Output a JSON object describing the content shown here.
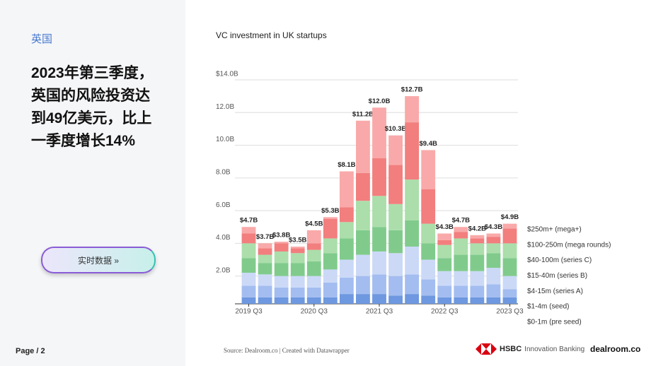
{
  "sidebar": {
    "tag": "英国",
    "headline": "2023年第三季度，英国的风险投资达到49亿美元，比上一季度增长14%",
    "button": "实时数据 »",
    "page": "Page / 2"
  },
  "chart_data": {
    "type": "stacked-bar",
    "title": "VC investment in UK startups",
    "categories": [
      "2019 Q3",
      null,
      null,
      null,
      "2020 Q3",
      null,
      null,
      null,
      "2021 Q3",
      null,
      null,
      null,
      "2022 Q3",
      null,
      null,
      null,
      "2023 Q3"
    ],
    "series": [
      {
        "name": "$0-1m (pre seed)",
        "color": "#6e98e0",
        "values": [
          0.4,
          0.4,
          0.4,
          0.4,
          0.4,
          0.4,
          0.6,
          0.6,
          0.6,
          0.5,
          0.6,
          0.5,
          0.4,
          0.4,
          0.4,
          0.4,
          0.4
        ]
      },
      {
        "name": "$1-4m (seed)",
        "color": "#a3bdf0",
        "values": [
          0.7,
          0.7,
          0.6,
          0.6,
          0.6,
          0.9,
          1.0,
          1.1,
          1.2,
          1.2,
          1.2,
          1.0,
          0.7,
          0.7,
          0.7,
          0.8,
          0.5
        ]
      },
      {
        "name": "$4-15m (series A)",
        "color": "#cbd9f7",
        "values": [
          0.8,
          0.7,
          0.7,
          0.7,
          0.7,
          0.8,
          1.1,
          1.3,
          1.4,
          1.4,
          1.7,
          1.2,
          0.9,
          0.9,
          0.9,
          1.0,
          0.8
        ]
      },
      {
        "name": "$15-40m (series B)",
        "color": "#80cb8c",
        "values": [
          0.9,
          0.7,
          0.8,
          0.8,
          0.9,
          1.0,
          1.3,
          1.5,
          1.5,
          1.4,
          1.6,
          1.0,
          0.8,
          1.0,
          1.0,
          0.9,
          1.1
        ]
      },
      {
        "name": "$40-100m (series C)",
        "color": "#abdeaa",
        "values": [
          0.9,
          0.5,
          0.7,
          0.6,
          0.7,
          0.9,
          1.0,
          1.8,
          1.9,
          1.6,
          2.5,
          1.2,
          0.8,
          1.0,
          0.7,
          0.6,
          0.9
        ]
      },
      {
        "name": "$100-250m (mega rounds)",
        "color": "#f27e7e",
        "values": [
          0.6,
          0.4,
          0.5,
          0.3,
          0.4,
          1.2,
          0.9,
          1.7,
          2.3,
          2.4,
          3.5,
          2.1,
          0.3,
          0.4,
          0.3,
          0.4,
          0.9
        ]
      },
      {
        "name": "$250m+ (mega+)",
        "color": "#f9a9a9",
        "values": [
          0.4,
          0.3,
          0.1,
          0.1,
          0.8,
          0.1,
          2.2,
          3.2,
          3.1,
          1.8,
          1.6,
          2.4,
          0.4,
          0.3,
          0.2,
          0.2,
          0.3
        ]
      }
    ],
    "totals": {
      "values": [
        4.7,
        3.7,
        3.8,
        3.5,
        4.5,
        5.3,
        8.1,
        11.2,
        12.0,
        10.3,
        12.7,
        9.4,
        4.3,
        4.7,
        4.2,
        4.3,
        4.9
      ],
      "value_labels": [
        "$4.7B",
        "$3.7B",
        "$3.8B",
        "$3.5B",
        "$4.5B",
        "$5.3B",
        "$8.1B",
        "$11.2B",
        "$12.0B",
        "$10.3B",
        "$12.7B",
        "$9.4B",
        "$4.3B",
        "$4.7B",
        "$4.2B",
        "$4.3B",
        "$4.9B"
      ]
    },
    "ylim": [
      0,
      14
    ],
    "yticks": [
      {
        "value": 2,
        "label": "2.0B"
      },
      {
        "value": 4,
        "label": "4.0B"
      },
      {
        "value": 6,
        "label": "6.0B"
      },
      {
        "value": 8,
        "label": "8.0B"
      },
      {
        "value": 10,
        "label": "10.0B"
      },
      {
        "value": 12,
        "label": "12.0B"
      },
      {
        "value": 14,
        "label": "$14.0B"
      }
    ],
    "grid": true,
    "legend": "right"
  },
  "footer": {
    "source": "Source:    Dealroom.co | Created with Datawrapper",
    "hsbc": "HSBC",
    "hsbc_sub": "Innovation Banking",
    "dealroom": "dealroom.co"
  }
}
